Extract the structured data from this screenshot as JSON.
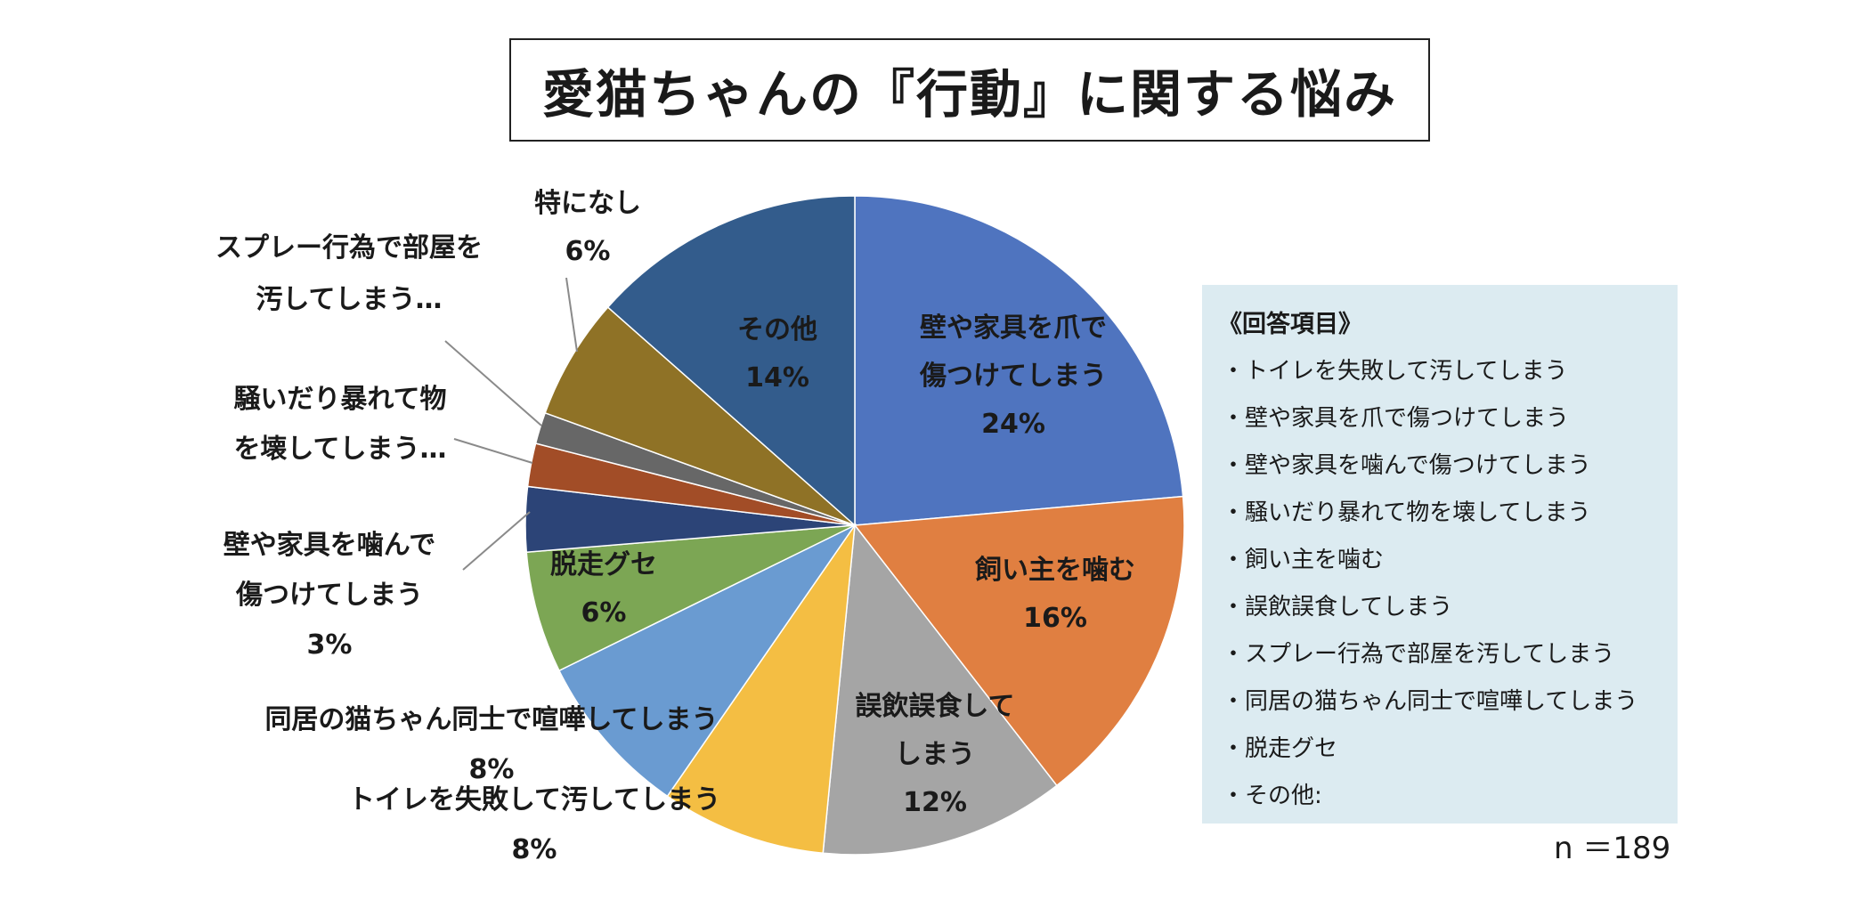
{
  "title": "愛猫ちゃんの『行動』に関する悩み",
  "legend": {
    "heading": "《回答項目》",
    "items": [
      "・トイレを失敗して汚してしまう",
      "・壁や家具を爪で傷つけてしまう",
      "・壁や家具を噛んで傷つけてしまう",
      "・騒いだり暴れて物を壊してしまう",
      "・飼い主を噛む",
      "・誤飲誤食してしまう",
      "・スプレー行為で部屋を汚してしまう",
      "・同居の猫ちゃん同士で喧嘩してしまう",
      "・脱走グセ",
      "・その他:"
    ]
  },
  "sample_size": "n ＝189",
  "chart_data": {
    "type": "pie",
    "title": "愛猫ちゃんの『行動』に関する悩み",
    "start": "12 o'clock, clockwise",
    "slices": [
      {
        "label": "壁や家具を爪で傷つけてしまう",
        "display": [
          "壁や家具を爪で",
          "傷つけてしまう"
        ],
        "pct_label": "24%",
        "value": 24.5,
        "color": "#4f74bf"
      },
      {
        "label": "飼い主を噛む",
        "display": [
          "飼い主を噛む"
        ],
        "pct_label": "16%",
        "value": 16.5,
        "color": "#e07f41"
      },
      {
        "label": "誤飲誤食してしまう",
        "display": [
          "誤飲誤食して",
          "しまう"
        ],
        "pct_label": "12%",
        "value": 12.5,
        "color": "#a5a5a5"
      },
      {
        "label": "トイレを失敗して汚してしまう",
        "display": [
          "トイレを失敗して汚してしまう"
        ],
        "pct_label": "8%",
        "value": 8.4,
        "color": "#f4be43"
      },
      {
        "label": "同居の猫ちゃん同士で喧嘩してしまう",
        "display": [
          "同居の猫ちゃん同士で喧嘩してしまう"
        ],
        "pct_label": "8%",
        "value": 8.4,
        "color": "#6a9bd1"
      },
      {
        "label": "脱走グセ",
        "display": [
          "脱走グセ"
        ],
        "pct_label": "6%",
        "value": 6.2,
        "color": "#7ca654"
      },
      {
        "label": "壁や家具を噛んで傷つけてしまう",
        "display": [
          "壁や家具を噛んで",
          "傷つけてしまう"
        ],
        "pct_label": "3%",
        "value": 3.3,
        "color": "#2c4477"
      },
      {
        "label": "騒いだり暴れて物を壊してしまう",
        "display": [
          "騒いだり暴れて物",
          "を壊してしまう…"
        ],
        "pct_label": "",
        "value": 2.2,
        "color": "#a24d27"
      },
      {
        "label": "スプレー行為で部屋を汚してしまう",
        "display": [
          "スプレー行為で部屋を",
          "汚してしまう…"
        ],
        "pct_label": "",
        "value": 1.6,
        "color": "#676767"
      },
      {
        "label": "特になし",
        "display": [
          "特になし"
        ],
        "pct_label": "6%",
        "value": 6.2,
        "color": "#8f7226"
      },
      {
        "label": "その他",
        "display": [
          "その他"
        ],
        "pct_label": "14%",
        "value": 14.0,
        "color": "#335c8c"
      }
    ]
  }
}
